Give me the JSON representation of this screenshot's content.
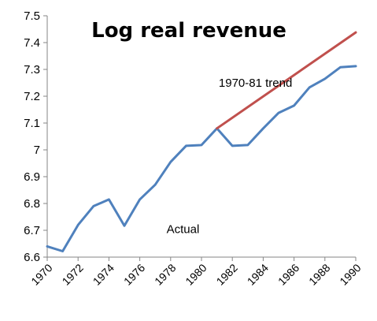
{
  "chart_data": {
    "type": "line",
    "title": "Log real revenue",
    "xlabel": "",
    "ylabel": "",
    "ylim": [
      6.6,
      7.5
    ],
    "xlim": [
      1970,
      1990
    ],
    "yticks": [
      "6.6",
      "6.7",
      "6.8",
      "6.9",
      "7",
      "7.1",
      "7.2",
      "7.3",
      "7.4",
      "7.5"
    ],
    "xticks": [
      "1970",
      "1972",
      "1974",
      "1976",
      "1978",
      "1980",
      "1982",
      "1984",
      "1986",
      "1988",
      "1990"
    ],
    "grid": false,
    "legend": "none",
    "series": [
      {
        "name": "",
        "color": "#4F81BD",
        "x": [
          1970,
          1971,
          1972,
          1973,
          1974,
          1975,
          1976,
          1977,
          1978,
          1979,
          1980,
          1981,
          1982,
          1983,
          1984,
          1985,
          1986,
          1987,
          1988,
          1989,
          1990
        ],
        "y": [
          6.64,
          6.622,
          6.72,
          6.79,
          6.815,
          6.717,
          6.815,
          6.87,
          6.955,
          7.015,
          7.018,
          7.08,
          7.015,
          7.018,
          7.08,
          7.138,
          7.165,
          7.233,
          7.265,
          7.308,
          7.312
        ]
      },
      {
        "name": "",
        "color": "#C0504D",
        "x": [
          1981,
          1990
        ],
        "y": [
          7.08,
          7.438
        ]
      }
    ],
    "annotations": [
      {
        "text": "1970-81 trend",
        "x": 1983.5,
        "y": 7.235
      },
      {
        "text": "Actual",
        "x": 1978.8,
        "y": 6.69
      }
    ]
  }
}
